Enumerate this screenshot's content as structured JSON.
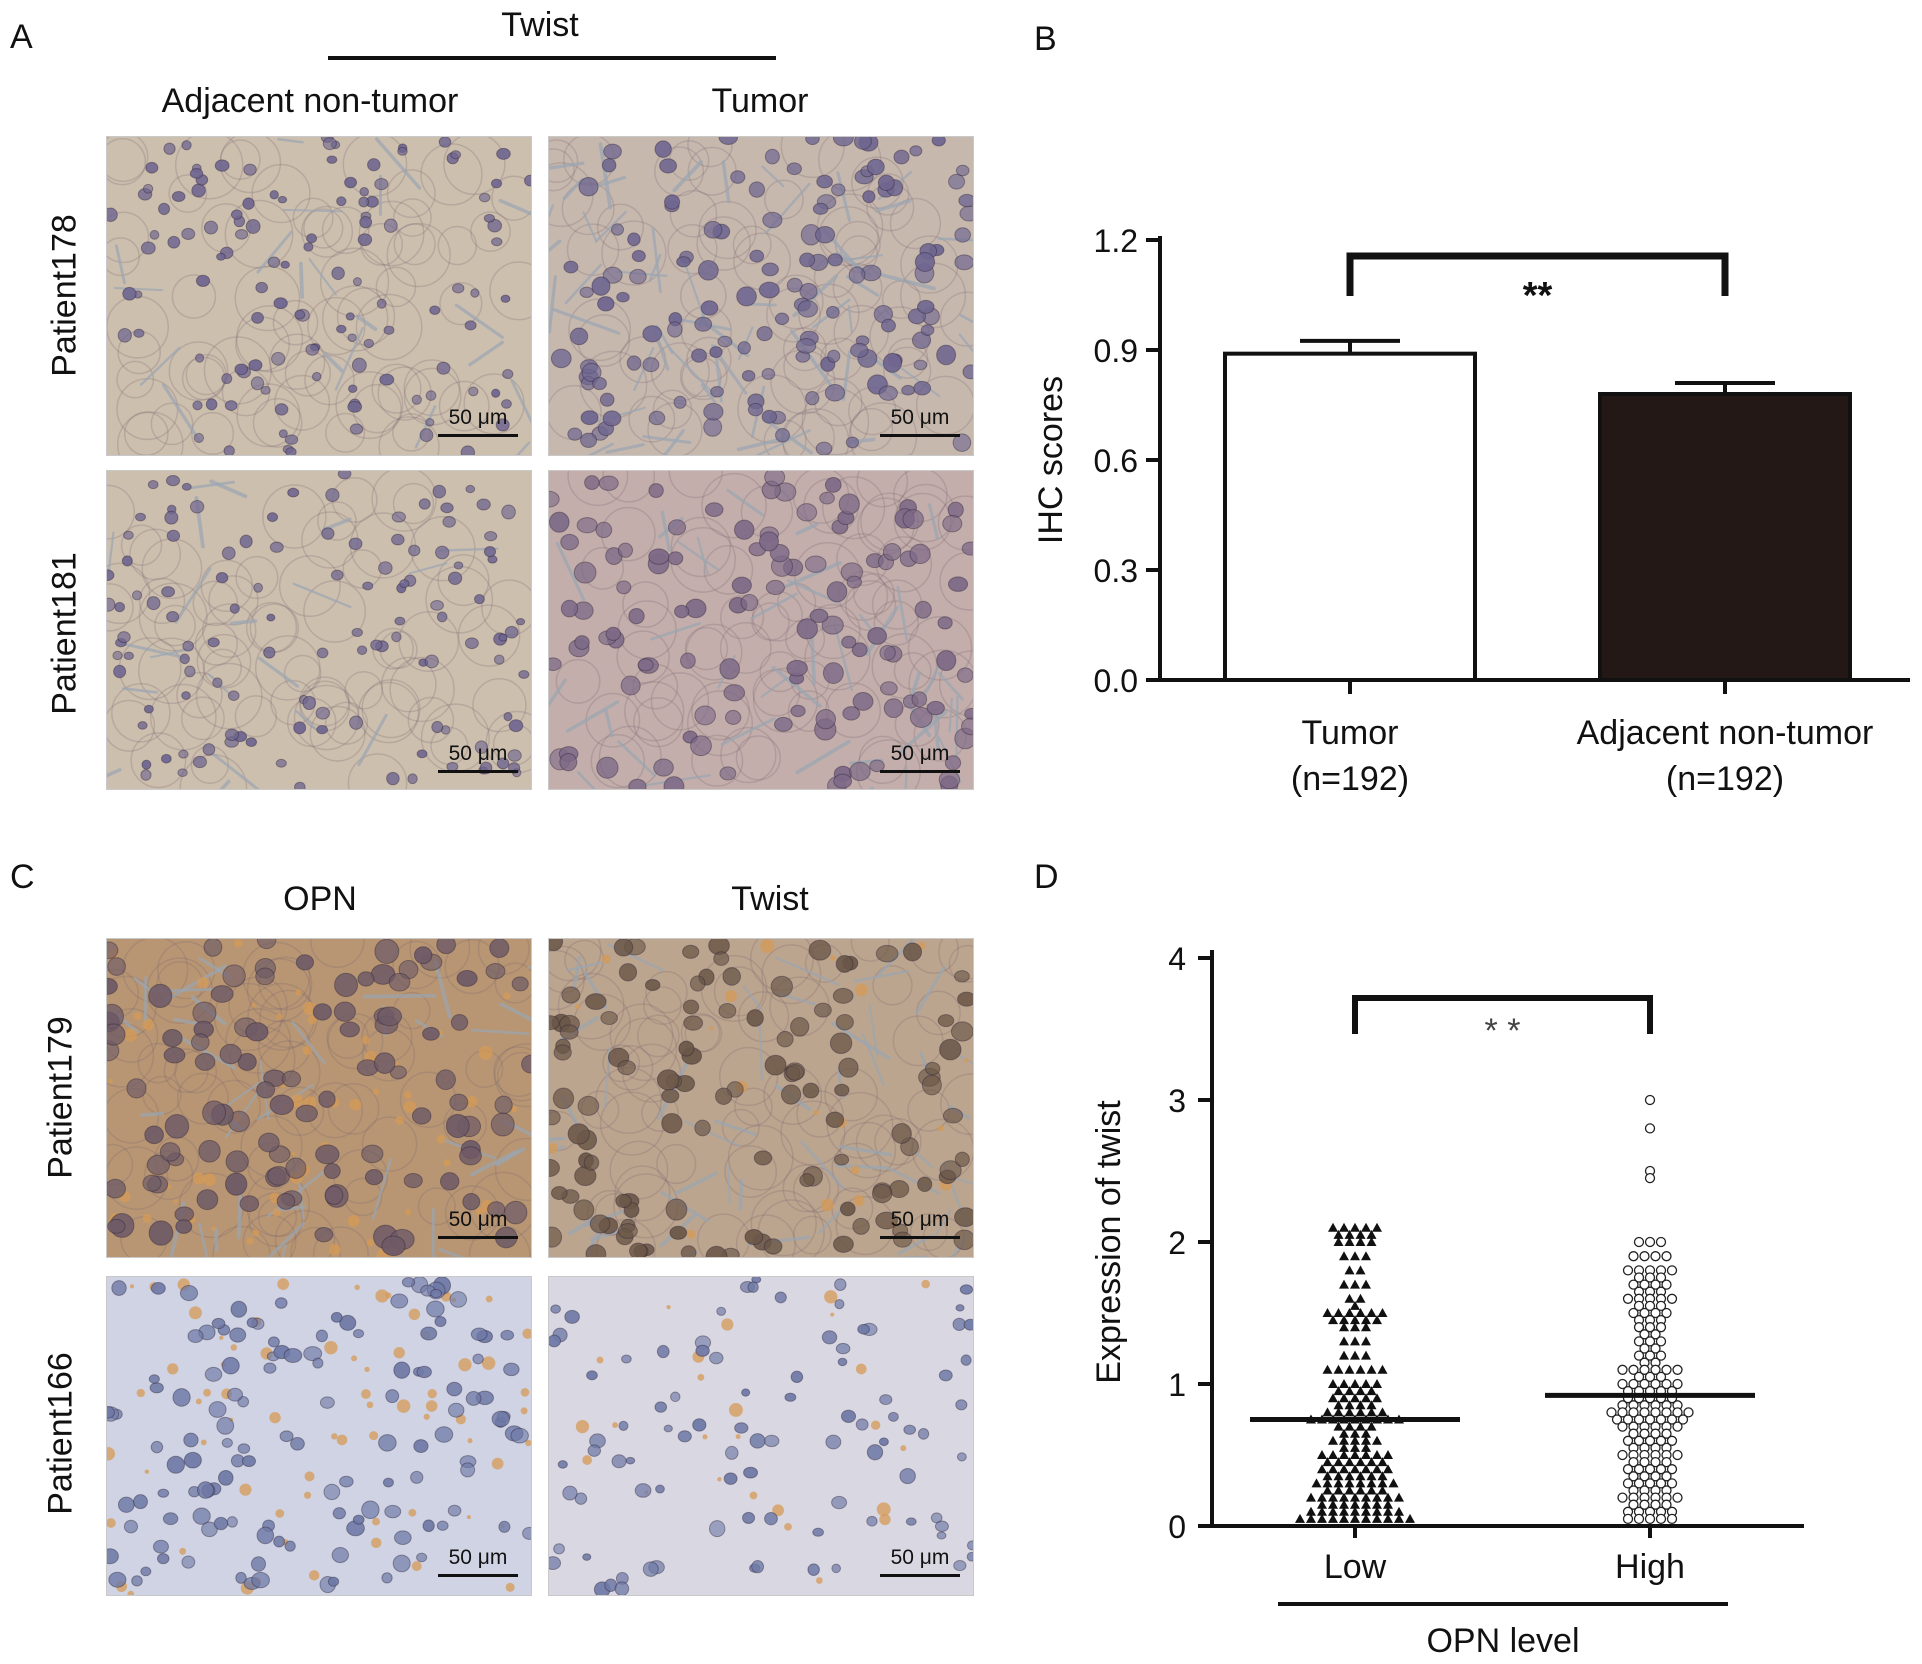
{
  "panels": {
    "A": {
      "label": "A",
      "header": "Twist",
      "columns": [
        "Adjacent non-tumor",
        "Tumor"
      ],
      "rows": [
        "Patient178",
        "Patient181"
      ],
      "scale_label": "50 μm"
    },
    "B": {
      "label": "B"
    },
    "C": {
      "label": "C",
      "columns": [
        "OPN",
        "Twist"
      ],
      "rows": [
        "Patient179",
        "Patient166"
      ],
      "scale_label": "50 μm"
    },
    "D": {
      "label": "D"
    }
  },
  "colors": {
    "he_background": "#cdbfae",
    "he_nucleus": "#6f6690",
    "he_stroma": "#9aa5b2",
    "dab_background": "#b89673",
    "dab_nucleus": "#6e5a66",
    "light_background": "#cfd3e3",
    "light_nucleus": "#6e79a6",
    "brown_spot": "#d59a55",
    "bar_tumor": "#ffffff",
    "bar_adjacent": "#231815"
  },
  "chart_data": [
    {
      "panel": "B",
      "type": "bar",
      "categories": [
        "Tumor",
        "Adjacent non-tumor"
      ],
      "category_sublabels": [
        "(n=192)",
        "(n=192)"
      ],
      "values": [
        0.89,
        0.78
      ],
      "errors": [
        0.035,
        0.03
      ],
      "bar_colors": [
        "#ffffff",
        "#231815"
      ],
      "ylabel": "IHC scores",
      "ylim": [
        0,
        1.2
      ],
      "yticks": [
        0.0,
        0.3,
        0.6,
        0.9,
        1.2
      ],
      "ytick_labels": [
        "0.0",
        "0.3",
        "0.6",
        "0.9",
        "1.2"
      ],
      "significance": "**"
    },
    {
      "panel": "D",
      "type": "scatter",
      "categories": [
        "Low",
        "High"
      ],
      "xlabel": "OPN level",
      "ylabel": "Expression of twist",
      "ylim": [
        0,
        4
      ],
      "yticks": [
        0,
        1,
        2,
        3,
        4
      ],
      "ytick_labels": [
        "0",
        "1",
        "2",
        "3",
        "4"
      ],
      "significance": "* *",
      "series": [
        {
          "category": "Low",
          "marker": "filled-triangle",
          "median": 0.75,
          "values": [
            2.1,
            2.1,
            2.1,
            2.1,
            2.1,
            2.05,
            2.05,
            2.05,
            2.05,
            2.0,
            2.0,
            2.0,
            2.0,
            1.9,
            1.9,
            1.9,
            1.8,
            1.8,
            1.7,
            1.7,
            1.7,
            1.6,
            1.6,
            1.55,
            1.5,
            1.5,
            1.5,
            1.5,
            1.5,
            1.5,
            1.45,
            1.45,
            1.45,
            1.45,
            1.45,
            1.4,
            1.4,
            1.4,
            1.3,
            1.3,
            1.3,
            1.2,
            1.2,
            1.2,
            1.1,
            1.1,
            1.1,
            1.1,
            1.1,
            1.1,
            1.0,
            1.0,
            1.0,
            1.0,
            1.0,
            0.95,
            0.95,
            0.95,
            0.95,
            0.9,
            0.9,
            0.9,
            0.9,
            0.9,
            0.85,
            0.85,
            0.85,
            0.85,
            0.8,
            0.8,
            0.8,
            0.8,
            0.8,
            0.8,
            0.75,
            0.75,
            0.75,
            0.75,
            0.75,
            0.75,
            0.75,
            0.75,
            0.75,
            0.7,
            0.7,
            0.7,
            0.7,
            0.65,
            0.65,
            0.65,
            0.6,
            0.6,
            0.6,
            0.6,
            0.6,
            0.55,
            0.55,
            0.55,
            0.5,
            0.5,
            0.5,
            0.5,
            0.5,
            0.5,
            0.5,
            0.45,
            0.45,
            0.45,
            0.45,
            0.45,
            0.45,
            0.4,
            0.4,
            0.4,
            0.4,
            0.4,
            0.4,
            0.4,
            0.35,
            0.35,
            0.35,
            0.35,
            0.35,
            0.35,
            0.3,
            0.3,
            0.3,
            0.3,
            0.3,
            0.3,
            0.3,
            0.3,
            0.25,
            0.25,
            0.25,
            0.25,
            0.25,
            0.25,
            0.2,
            0.2,
            0.2,
            0.2,
            0.2,
            0.2,
            0.2,
            0.2,
            0.2,
            0.15,
            0.15,
            0.15,
            0.15,
            0.15,
            0.15,
            0.15,
            0.1,
            0.1,
            0.1,
            0.1,
            0.1,
            0.1,
            0.1,
            0.1,
            0.1,
            0.05,
            0.05,
            0.05,
            0.05,
            0.05,
            0.05,
            0.05,
            0.05,
            0.05,
            0.05,
            0.05
          ]
        },
        {
          "category": "High",
          "marker": "open-circle",
          "median": 0.92,
          "values": [
            3.0,
            2.8,
            2.5,
            2.45,
            2.0,
            2.0,
            2.0,
            1.9,
            1.9,
            1.9,
            1.9,
            1.8,
            1.8,
            1.8,
            1.8,
            1.8,
            1.75,
            1.75,
            1.75,
            1.7,
            1.7,
            1.7,
            1.7,
            1.65,
            1.65,
            1.65,
            1.6,
            1.6,
            1.6,
            1.6,
            1.6,
            1.55,
            1.55,
            1.55,
            1.5,
            1.5,
            1.5,
            1.5,
            1.45,
            1.45,
            1.45,
            1.4,
            1.4,
            1.4,
            1.35,
            1.35,
            1.3,
            1.3,
            1.3,
            1.25,
            1.25,
            1.2,
            1.2,
            1.2,
            1.15,
            1.15,
            1.1,
            1.1,
            1.1,
            1.1,
            1.1,
            1.1,
            1.05,
            1.05,
            1.05,
            1.0,
            1.0,
            1.0,
            1.0,
            1.0,
            1.0,
            0.95,
            0.95,
            0.95,
            0.95,
            0.95,
            0.9,
            0.9,
            0.9,
            0.9,
            0.9,
            0.85,
            0.85,
            0.85,
            0.85,
            0.85,
            0.85,
            0.8,
            0.8,
            0.8,
            0.8,
            0.8,
            0.8,
            0.8,
            0.8,
            0.75,
            0.75,
            0.75,
            0.75,
            0.75,
            0.75,
            0.75,
            0.7,
            0.7,
            0.7,
            0.7,
            0.7,
            0.7,
            0.65,
            0.65,
            0.65,
            0.65,
            0.6,
            0.6,
            0.6,
            0.6,
            0.6,
            0.55,
            0.55,
            0.55,
            0.55,
            0.5,
            0.5,
            0.5,
            0.5,
            0.5,
            0.5,
            0.45,
            0.45,
            0.45,
            0.45,
            0.4,
            0.4,
            0.4,
            0.4,
            0.4,
            0.35,
            0.35,
            0.35,
            0.35,
            0.3,
            0.3,
            0.3,
            0.3,
            0.3,
            0.25,
            0.25,
            0.25,
            0.25,
            0.2,
            0.2,
            0.2,
            0.2,
            0.2,
            0.2,
            0.15,
            0.15,
            0.15,
            0.15,
            0.1,
            0.1,
            0.1,
            0.1,
            0.1,
            0.05,
            0.05,
            0.05,
            0.05,
            0.05
          ]
        }
      ]
    }
  ]
}
